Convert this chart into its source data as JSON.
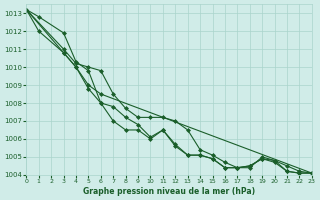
{
  "background_color": "#d0ece8",
  "grid_color": "#aad4cc",
  "line_color": "#1a5e2a",
  "marker_color": "#1a5e2a",
  "xlabel": "Graphe pression niveau de la mer (hPa)",
  "xlim": [
    0,
    23
  ],
  "ylim": [
    1004,
    1013.5
  ],
  "yticks": [
    1004,
    1005,
    1006,
    1007,
    1008,
    1009,
    1010,
    1011,
    1012,
    1013
  ],
  "xticks": [
    0,
    1,
    2,
    3,
    4,
    5,
    6,
    7,
    8,
    9,
    10,
    11,
    12,
    13,
    14,
    15,
    16,
    17,
    18,
    19,
    20,
    21,
    22,
    23
  ],
  "series": [
    {
      "x": [
        0,
        1,
        3,
        4,
        5,
        6,
        7,
        8,
        9,
        10,
        11,
        12,
        13,
        14,
        15,
        16,
        17,
        18,
        19,
        20,
        21,
        22,
        23
      ],
      "y": [
        1013.2,
        1012.8,
        1011.9,
        1010.3,
        1009.8,
        1008.0,
        1007.0,
        1006.5,
        1006.5,
        1006.0,
        1006.5,
        1005.6,
        1005.1,
        1005.1,
        1004.9,
        1004.4,
        1004.4,
        1004.5,
        1004.9,
        1004.7,
        1004.2,
        1004.1,
        1004.1
      ]
    },
    {
      "x": [
        0,
        3,
        4,
        5,
        6,
        7,
        8,
        9,
        10,
        11,
        12,
        13,
        14,
        15,
        16,
        17,
        18,
        19,
        20,
        21,
        22,
        23
      ],
      "y": [
        1013.2,
        1011.0,
        1010.2,
        1010.0,
        1009.8,
        1008.5,
        1007.7,
        1007.2,
        1007.2,
        1007.2,
        1007.0,
        1006.5,
        1005.4,
        1005.1,
        1004.7,
        1004.4,
        1004.4,
        1005.0,
        1004.8,
        1004.5,
        1004.2,
        1004.1
      ]
    },
    {
      "x": [
        0,
        1,
        3,
        4,
        5,
        6,
        7,
        8,
        9,
        10,
        11,
        12,
        13,
        14,
        15,
        16,
        17,
        18,
        19,
        20,
        21,
        22,
        23
      ],
      "y": [
        1013.2,
        1012.0,
        1010.8,
        1010.0,
        1008.8,
        1008.0,
        1007.8,
        1007.2,
        1006.8,
        1006.1,
        1006.5,
        1005.7,
        1005.1,
        1005.1,
        1004.9,
        1004.4,
        1004.4,
        1004.5,
        1004.9,
        1004.8,
        1004.2,
        1004.1,
        1004.1
      ]
    },
    {
      "x": [
        0,
        3,
        4,
        5,
        6,
        23
      ],
      "y": [
        1013.2,
        1010.8,
        1010.0,
        1009.0,
        1008.5,
        1004.1
      ]
    }
  ]
}
